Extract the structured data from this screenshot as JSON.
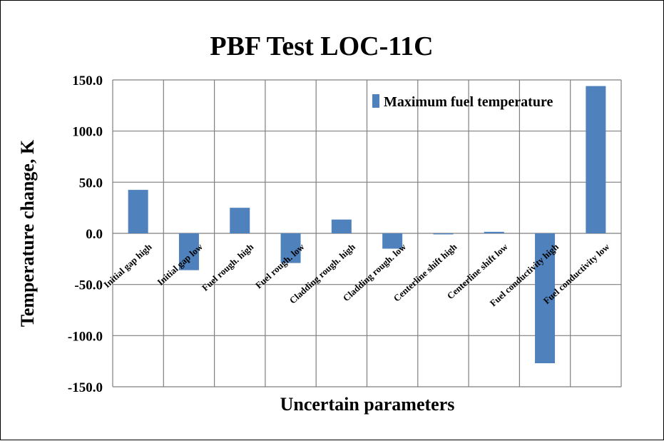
{
  "chart_data": {
    "type": "bar",
    "title": "PBF Test LOC-11C",
    "xlabel": "Uncertain parameters",
    "ylabel": "Temperature  change, K",
    "ylim": [
      -150,
      150
    ],
    "yticks": [
      "150.0",
      "100.0",
      "50.0",
      "0.0",
      "-50.0",
      "-100.0",
      "-150.0"
    ],
    "categories": [
      "Initial gap high",
      "Initial gap low",
      "Fuel rough. high",
      "Fuel rough. low",
      "Cladding rough. high",
      "Cladding rough. low",
      "Centerline shift high",
      "Centerline shift low",
      "Fuel conductivity high",
      "Fuel conductivity low"
    ],
    "series": [
      {
        "name": "Maximum fuel temperature",
        "color": "#4F81BD",
        "values": [
          42.5,
          -36.0,
          25.0,
          -29.0,
          13.5,
          -15.0,
          -1.0,
          1.5,
          -127.0,
          144.0
        ]
      }
    ],
    "grid": true,
    "legend": "top-right"
  }
}
